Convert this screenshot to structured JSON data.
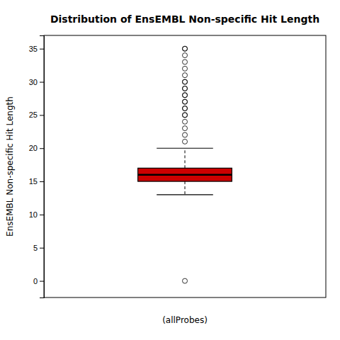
{
  "chart_data": {
    "type": "box",
    "title": "Distribution of EnsEMBL Non-specific Hit Length",
    "xlabel": "(allProbes)",
    "ylabel": "EnsEMBL Non-specific Hit Length",
    "q1": 15,
    "median": 16,
    "q3": 17,
    "whisker_low": 13,
    "whisker_high": 20,
    "outliers_high": [
      21,
      22,
      23,
      24,
      25,
      25,
      26,
      26,
      27,
      27,
      28,
      28,
      29,
      29,
      30,
      30,
      31,
      32,
      33,
      34,
      35,
      35
    ],
    "outliers_low": [
      0
    ],
    "color": "#CC0000",
    "ylim": [
      -2.5,
      37
    ],
    "yticks": [
      0,
      5,
      10,
      15,
      20,
      25,
      30,
      35
    ]
  }
}
